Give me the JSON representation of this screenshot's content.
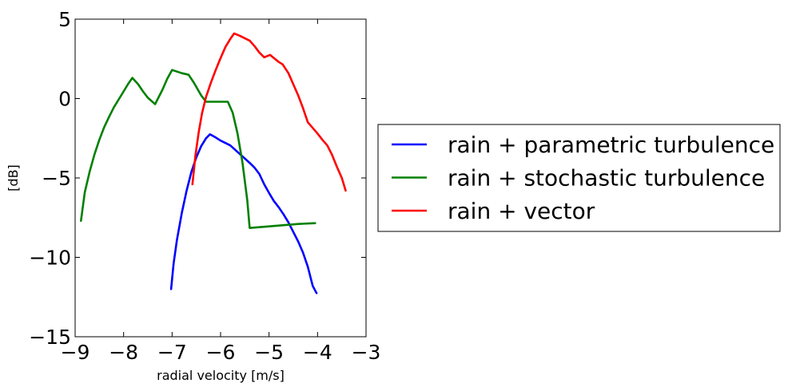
{
  "chart_data": {
    "type": "line",
    "title": "",
    "xlabel": "radial velocity [m/s]",
    "ylabel": "[dB]",
    "xlim": [
      -9,
      -3
    ],
    "ylim": [
      -15,
      5
    ],
    "x_ticks": [
      -9,
      -8,
      -7,
      -6,
      -5,
      -4,
      -3
    ],
    "y_ticks": [
      -15,
      -10,
      -5,
      0,
      5
    ],
    "x_tick_labels": [
      "−9",
      "−8",
      "−7",
      "−6",
      "−5",
      "−4",
      "−3"
    ],
    "y_tick_labels": [
      "−15",
      "−10",
      "−5",
      "0",
      "5"
    ],
    "grid": false,
    "legend_position": "outside-right",
    "series": [
      {
        "name": "rain + parametric turbulence",
        "color": "#0000ff",
        "points": [
          [
            -7.02,
            -12.0
          ],
          [
            -6.97,
            -10.4
          ],
          [
            -6.9,
            -8.9
          ],
          [
            -6.8,
            -7.2
          ],
          [
            -6.7,
            -5.8
          ],
          [
            -6.6,
            -4.6
          ],
          [
            -6.5,
            -3.7
          ],
          [
            -6.4,
            -3.0
          ],
          [
            -6.3,
            -2.5
          ],
          [
            -6.22,
            -2.25
          ],
          [
            -6.1,
            -2.45
          ],
          [
            -6.0,
            -2.65
          ],
          [
            -5.8,
            -2.95
          ],
          [
            -5.6,
            -3.5
          ],
          [
            -5.4,
            -4.05
          ],
          [
            -5.3,
            -4.35
          ],
          [
            -5.2,
            -4.75
          ],
          [
            -5.1,
            -5.4
          ],
          [
            -5.0,
            -5.95
          ],
          [
            -4.9,
            -6.45
          ],
          [
            -4.8,
            -6.85
          ],
          [
            -4.7,
            -7.3
          ],
          [
            -4.6,
            -7.8
          ],
          [
            -4.5,
            -8.4
          ],
          [
            -4.4,
            -9.0
          ],
          [
            -4.3,
            -9.7
          ],
          [
            -4.2,
            -10.6
          ],
          [
            -4.1,
            -11.8
          ],
          [
            -4.02,
            -12.25
          ]
        ]
      },
      {
        "name": "rain + stochastic turbulence",
        "color": "#008000",
        "points": [
          [
            -8.88,
            -7.7
          ],
          [
            -8.8,
            -5.9
          ],
          [
            -8.7,
            -4.6
          ],
          [
            -8.6,
            -3.5
          ],
          [
            -8.5,
            -2.6
          ],
          [
            -8.4,
            -1.8
          ],
          [
            -8.3,
            -1.15
          ],
          [
            -8.2,
            -0.55
          ],
          [
            -8.1,
            -0.05
          ],
          [
            -8.0,
            0.45
          ],
          [
            -7.9,
            0.95
          ],
          [
            -7.82,
            1.3
          ],
          [
            -7.7,
            0.9
          ],
          [
            -7.6,
            0.45
          ],
          [
            -7.5,
            0.05
          ],
          [
            -7.35,
            -0.35
          ],
          [
            -7.2,
            0.55
          ],
          [
            -7.1,
            1.25
          ],
          [
            -7.0,
            1.8
          ],
          [
            -6.9,
            1.7
          ],
          [
            -6.8,
            1.6
          ],
          [
            -6.66,
            1.5
          ],
          [
            -6.55,
            1.0
          ],
          [
            -6.4,
            0.2
          ],
          [
            -6.3,
            -0.2
          ],
          [
            -6.1,
            -0.2
          ],
          [
            -5.95,
            -0.2
          ],
          [
            -5.85,
            -0.2
          ],
          [
            -5.75,
            -0.9
          ],
          [
            -5.65,
            -2.2
          ],
          [
            -5.55,
            -4.0
          ],
          [
            -5.45,
            -6.4
          ],
          [
            -5.4,
            -8.15
          ],
          [
            -5.2,
            -8.1
          ],
          [
            -5.0,
            -8.05
          ],
          [
            -4.8,
            -8.0
          ],
          [
            -4.6,
            -7.95
          ],
          [
            -4.4,
            -7.9
          ],
          [
            -4.2,
            -7.87
          ],
          [
            -4.05,
            -7.85
          ]
        ]
      },
      {
        "name": "rain + vector",
        "color": "#ff0000",
        "points": [
          [
            -6.58,
            -5.4
          ],
          [
            -6.52,
            -3.6
          ],
          [
            -6.45,
            -2.1
          ],
          [
            -6.38,
            -0.9
          ],
          [
            -6.3,
            0.1
          ],
          [
            -6.2,
            1.0
          ],
          [
            -6.1,
            1.8
          ],
          [
            -6.0,
            2.55
          ],
          [
            -5.9,
            3.25
          ],
          [
            -5.8,
            3.75
          ],
          [
            -5.72,
            4.1
          ],
          [
            -5.6,
            3.95
          ],
          [
            -5.5,
            3.8
          ],
          [
            -5.4,
            3.65
          ],
          [
            -5.3,
            3.3
          ],
          [
            -5.2,
            2.9
          ],
          [
            -5.1,
            2.6
          ],
          [
            -4.98,
            2.75
          ],
          [
            -4.9,
            2.55
          ],
          [
            -4.8,
            2.3
          ],
          [
            -4.72,
            2.15
          ],
          [
            -4.6,
            1.6
          ],
          [
            -4.5,
            0.9
          ],
          [
            -4.4,
            0.2
          ],
          [
            -4.3,
            -0.6
          ],
          [
            -4.2,
            -1.5
          ],
          [
            -4.1,
            -1.85
          ],
          [
            -4.0,
            -2.2
          ],
          [
            -3.9,
            -2.6
          ],
          [
            -3.8,
            -2.95
          ],
          [
            -3.7,
            -3.55
          ],
          [
            -3.6,
            -4.3
          ],
          [
            -3.5,
            -5.0
          ],
          [
            -3.42,
            -5.8
          ]
        ]
      }
    ]
  }
}
